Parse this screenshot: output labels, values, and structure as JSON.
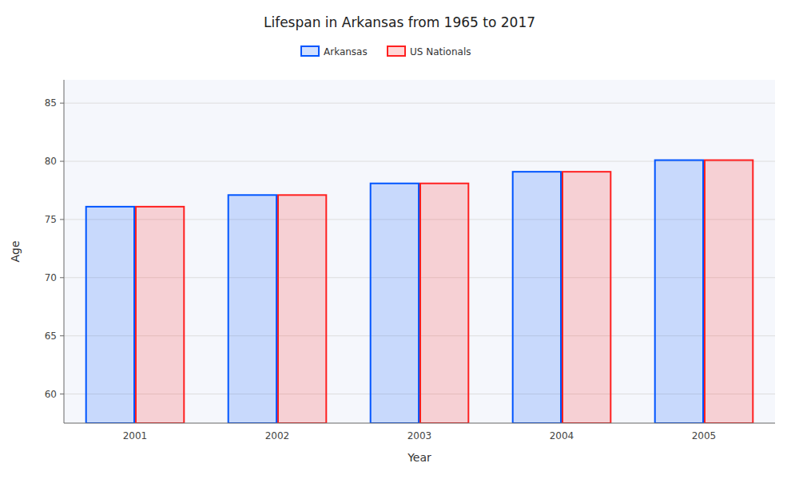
{
  "chart_data": {
    "type": "bar",
    "title": "Lifespan in Arkansas from 1965 to 2017",
    "x_label": "Year",
    "y_label": "Age",
    "categories": [
      "2001",
      "2002",
      "2003",
      "2004",
      "2005"
    ],
    "series": [
      {
        "name": "Arkansas",
        "color": "#0055ff",
        "values": [
          76.1,
          77.1,
          78.1,
          79.1,
          80.1
        ]
      },
      {
        "name": "US Nationals",
        "color": "#ff2020",
        "values": [
          76.1,
          77.1,
          78.1,
          79.1,
          80.1
        ]
      }
    ],
    "ylim": [
      57.5,
      87
    ],
    "yticks": [
      60,
      65,
      70,
      75,
      80,
      85
    ],
    "grid": true,
    "legend": "top"
  }
}
